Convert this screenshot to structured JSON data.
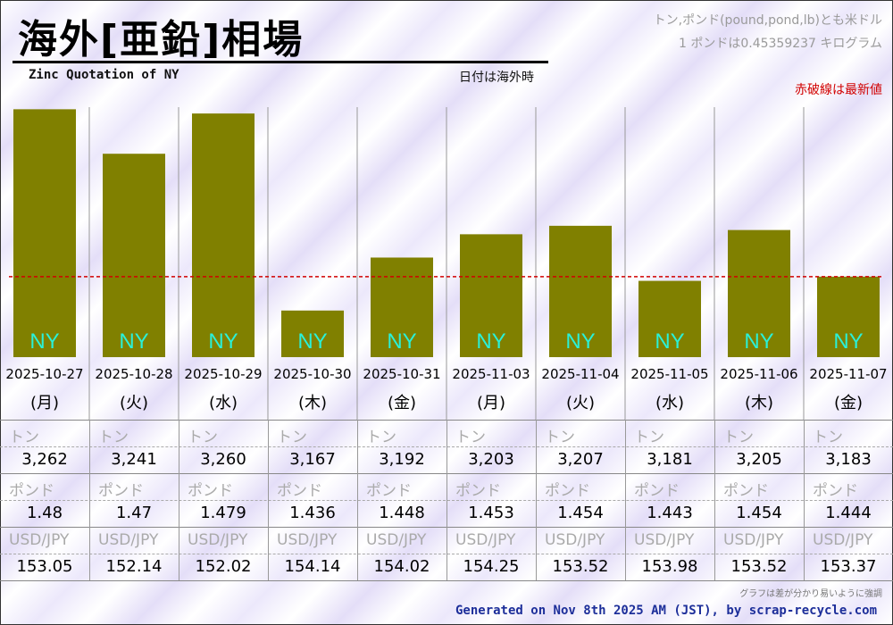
{
  "header": {
    "title": "海外[亜鉛]相場",
    "subtitle": "Zinc Quotation of NY",
    "date_note": "日付は海外時",
    "unit_note_1": "トン,ポンド(pound,pond,lb)とも米ドル",
    "unit_note_2": "1 ポンドは0.45359237 キログラム",
    "latest_note": "赤破線は最新値"
  },
  "footer": {
    "emphasis_note": "グラフは差が分かり易いように強調",
    "generated": "Generated on Nov 8th 2025 AM (JST), by scrap-recycle.com"
  },
  "colors": {
    "bar": "#808000",
    "bar_label": "#2af0d8",
    "latest_line": "#d10000",
    "footer_text": "#1d2f9a"
  },
  "chart_data": {
    "type": "bar",
    "series_name": "NY",
    "categories": [
      "2025-10-27",
      "2025-10-28",
      "2025-10-29",
      "2025-10-30",
      "2025-10-31",
      "2025-11-03",
      "2025-11-04",
      "2025-11-05",
      "2025-11-06",
      "2025-11-07"
    ],
    "weekdays": [
      "(月)",
      "(火)",
      "(水)",
      "(木)",
      "(金)",
      "(月)",
      "(火)",
      "(水)",
      "(木)",
      "(金)"
    ],
    "values": [
      3262,
      3241,
      3260,
      3167,
      3192,
      3203,
      3207,
      3181,
      3205,
      3183
    ],
    "latest_value": 3183,
    "ylim": [
      3145,
      3263
    ],
    "grid": "vertical separators only"
  },
  "table": {
    "rows": [
      {
        "label": "トン",
        "values": [
          "3,262",
          "3,241",
          "3,260",
          "3,167",
          "3,192",
          "3,203",
          "3,207",
          "3,181",
          "3,205",
          "3,183"
        ]
      },
      {
        "label": "ポンド",
        "values": [
          "1.48",
          "1.47",
          "1.479",
          "1.436",
          "1.448",
          "1.453",
          "1.454",
          "1.443",
          "1.454",
          "1.444"
        ]
      },
      {
        "label": "USD/JPY",
        "values": [
          "153.05",
          "152.14",
          "152.02",
          "154.14",
          "154.02",
          "154.25",
          "153.52",
          "153.98",
          "153.52",
          "153.37"
        ]
      }
    ]
  }
}
